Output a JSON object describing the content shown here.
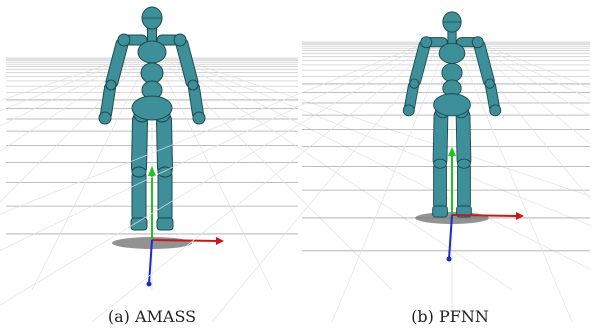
{
  "figures": [
    {
      "caption": "(a) AMASS"
    },
    {
      "caption": "(b) PFNN"
    }
  ]
}
